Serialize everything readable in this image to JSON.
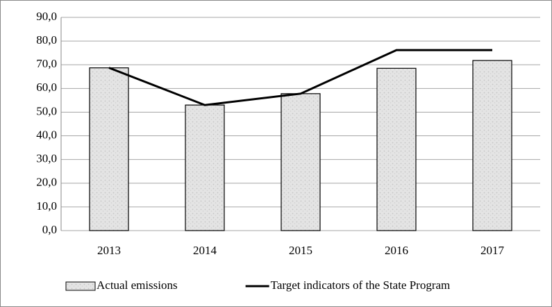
{
  "chart_data": {
    "type": "bar",
    "categories": [
      "2013",
      "2014",
      "2015",
      "2016",
      "2017"
    ],
    "series": [
      {
        "name": "Actual emissions",
        "type": "bar",
        "color": "#dcdcdc",
        "values": [
          68.7,
          53.0,
          57.8,
          68.5,
          71.8
        ]
      },
      {
        "name": "Target indicators of the State Program",
        "type": "line",
        "color": "#000000",
        "values": [
          68.7,
          53.0,
          57.8,
          76.2,
          76.2
        ]
      }
    ],
    "ylim": [
      0,
      90
    ],
    "yticks": [
      {
        "value": 0,
        "label": "0,0"
      },
      {
        "value": 10,
        "label": "10,0"
      },
      {
        "value": 20,
        "label": "20,0"
      },
      {
        "value": 30,
        "label": "30,0"
      },
      {
        "value": 40,
        "label": "40,0"
      },
      {
        "value": 50,
        "label": "50,0"
      },
      {
        "value": 60,
        "label": "60,0"
      },
      {
        "value": 70,
        "label": "70,0"
      },
      {
        "value": 80,
        "label": "80,0"
      },
      {
        "value": 90,
        "label": "90,0"
      }
    ],
    "grid": true,
    "legend": "bottom"
  }
}
